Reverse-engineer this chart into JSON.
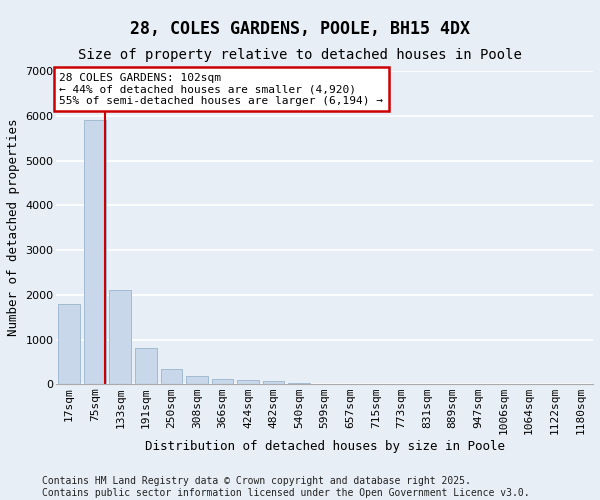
{
  "title": "28, COLES GARDENS, POOLE, BH15 4DX",
  "subtitle": "Size of property relative to detached houses in Poole",
  "xlabel": "Distribution of detached houses by size in Poole",
  "ylabel": "Number of detached properties",
  "categories": [
    "17sqm",
    "75sqm",
    "133sqm",
    "191sqm",
    "250sqm",
    "308sqm",
    "366sqm",
    "424sqm",
    "482sqm",
    "540sqm",
    "599sqm",
    "657sqm",
    "715sqm",
    "773sqm",
    "831sqm",
    "889sqm",
    "947sqm",
    "1006sqm",
    "1064sqm",
    "1122sqm",
    "1180sqm"
  ],
  "values": [
    1800,
    5900,
    2100,
    820,
    340,
    200,
    120,
    100,
    80,
    30,
    10,
    5,
    5,
    0,
    0,
    0,
    0,
    0,
    0,
    0,
    0
  ],
  "bar_color": "#c8d8ea",
  "bar_edge_color": "#9ab5cc",
  "red_line_x": 1.4,
  "annotation_text": "28 COLES GARDENS: 102sqm\n← 44% of detached houses are smaller (4,920)\n55% of semi-detached houses are larger (6,194) →",
  "annotation_box_color": "#ffffff",
  "annotation_border_color": "#cc0000",
  "bg_color": "#e8eef5",
  "grid_color": "#ffffff",
  "ylim": [
    0,
    7000
  ],
  "red_line_color": "#cc0000",
  "footer_text": "Contains HM Land Registry data © Crown copyright and database right 2025.\nContains public sector information licensed under the Open Government Licence v3.0.",
  "title_fontsize": 12,
  "subtitle_fontsize": 10,
  "axis_label_fontsize": 9,
  "tick_fontsize": 8,
  "annotation_fontsize": 8,
  "footer_fontsize": 7
}
